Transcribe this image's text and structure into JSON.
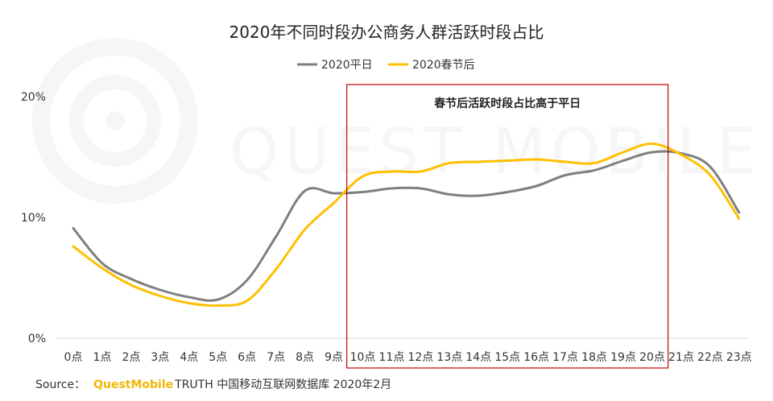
{
  "chart_data": {
    "type": "line",
    "title": "2020年不同时段办公商务人群活跃时段占比",
    "xlabel": "",
    "ylabel": "",
    "categories": [
      "0点",
      "1点",
      "2点",
      "3点",
      "4点",
      "5点",
      "6点",
      "7点",
      "8点",
      "9点",
      "10点",
      "11点",
      "12点",
      "13点",
      "14点",
      "15点",
      "16点",
      "17点",
      "18点",
      "19点",
      "20点",
      "21点",
      "22点",
      "23点"
    ],
    "yticks": [
      "0%",
      "10%",
      "20%"
    ],
    "ylim": [
      0,
      20
    ],
    "grid": false,
    "legend": "top-center",
    "series": [
      {
        "name": "2020平日",
        "color": "#7f7f7f",
        "values": [
          9.1,
          6.2,
          4.9,
          4.0,
          3.4,
          3.2,
          4.8,
          8.4,
          12.2,
          12.0,
          12.1,
          12.4,
          12.4,
          11.9,
          11.8,
          12.1,
          12.6,
          13.5,
          13.9,
          14.7,
          15.4,
          15.3,
          14.2,
          10.4
        ]
      },
      {
        "name": "2020春节后",
        "color": "#ffc000",
        "values": [
          7.6,
          5.8,
          4.4,
          3.5,
          2.9,
          2.7,
          3.1,
          5.7,
          9.0,
          11.2,
          13.4,
          13.8,
          13.8,
          14.5,
          14.6,
          14.7,
          14.8,
          14.6,
          14.5,
          15.4,
          16.1,
          15.2,
          13.5,
          9.9
        ]
      }
    ],
    "annotation": {
      "text": "春节后活跃时段占比高于平日",
      "range": [
        "10点",
        "20点"
      ],
      "border_color": "#c00000"
    }
  },
  "watermark": "QUEST MOBILE",
  "source": {
    "label": "Source：",
    "brand": "QuestMobile",
    "rest": "TRUTH 中国移动互联网数据库 2020年2月"
  }
}
